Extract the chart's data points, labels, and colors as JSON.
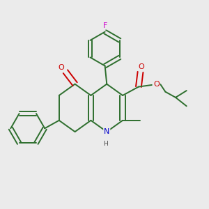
{
  "background_color": "#ebebeb",
  "bond_color": "#2d6e2d",
  "atom_colors": {
    "N": "#0000cc",
    "O": "#cc0000",
    "F": "#cc00cc"
  },
  "figsize": [
    3.0,
    3.0
  ],
  "dpi": 100
}
